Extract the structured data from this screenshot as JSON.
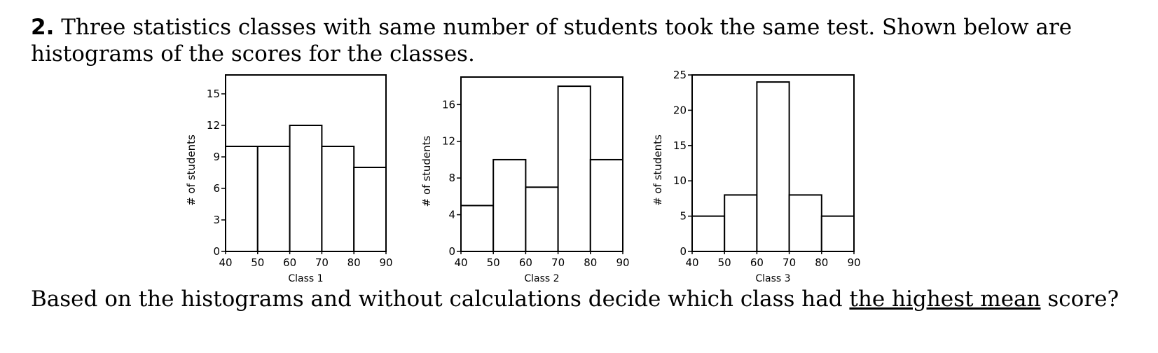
{
  "problem": {
    "number": "2.",
    "intro": "Three statistics classes with same number of students took the same test. Shown below are histograms of the scores for the classes.",
    "question_before": "Based on the histograms and without calculations decide which class had ",
    "question_underlined": "the highest mean",
    "question_after": " score?"
  },
  "chart_data": [
    {
      "type": "bar",
      "title": "",
      "xlabel": "Class 1",
      "ylabel": "# of students",
      "bins": [
        [
          40,
          50
        ],
        [
          50,
          60
        ],
        [
          60,
          70
        ],
        [
          70,
          80
        ],
        [
          80,
          90
        ]
      ],
      "values": [
        10,
        10,
        12,
        10,
        8
      ],
      "xticks": [
        40,
        50,
        60,
        70,
        80,
        90
      ],
      "yticks": [
        0,
        3,
        6,
        9,
        12,
        15
      ],
      "xlim": [
        40,
        90
      ],
      "ylim": [
        0,
        16.8
      ]
    },
    {
      "type": "bar",
      "title": "",
      "xlabel": "Class 2",
      "ylabel": "# of students",
      "bins": [
        [
          40,
          50
        ],
        [
          50,
          60
        ],
        [
          60,
          70
        ],
        [
          70,
          80
        ],
        [
          80,
          90
        ]
      ],
      "values": [
        5,
        10,
        7,
        18,
        10
      ],
      "xticks": [
        40,
        50,
        60,
        70,
        80,
        90
      ],
      "yticks": [
        0,
        4,
        8,
        12,
        16
      ],
      "xlim": [
        40,
        90
      ],
      "ylim": [
        0,
        19
      ]
    },
    {
      "type": "bar",
      "title": "",
      "xlabel": "Class 3",
      "ylabel": "# of students",
      "bins": [
        [
          40,
          50
        ],
        [
          50,
          60
        ],
        [
          60,
          70
        ],
        [
          70,
          80
        ],
        [
          80,
          90
        ]
      ],
      "values": [
        5,
        8,
        24,
        8,
        5
      ],
      "xticks": [
        40,
        50,
        60,
        70,
        80,
        90
      ],
      "yticks": [
        0,
        5,
        10,
        15,
        20,
        25
      ],
      "xlim": [
        40,
        90
      ],
      "ylim": [
        0,
        25
      ]
    }
  ]
}
